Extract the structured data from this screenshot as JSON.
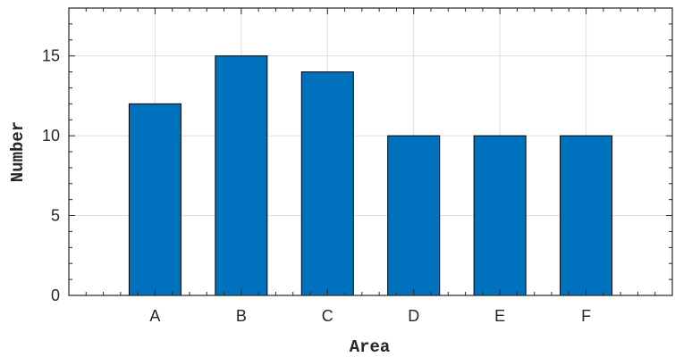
{
  "chart_data": {
    "type": "bar",
    "title": "",
    "xlabel": "Area",
    "ylabel": "Number",
    "categories": [
      "A",
      "B",
      "C",
      "D",
      "E",
      "F"
    ],
    "values": [
      12,
      15,
      14,
      10,
      10,
      10
    ],
    "ylim": [
      0,
      18
    ],
    "yticks": [
      0,
      5,
      10,
      15
    ],
    "grid": true,
    "bar_color": "#0072bd",
    "bar_edge_color": "#000000",
    "axis_color": "#262626",
    "grid_color": "#dfdfdf"
  }
}
